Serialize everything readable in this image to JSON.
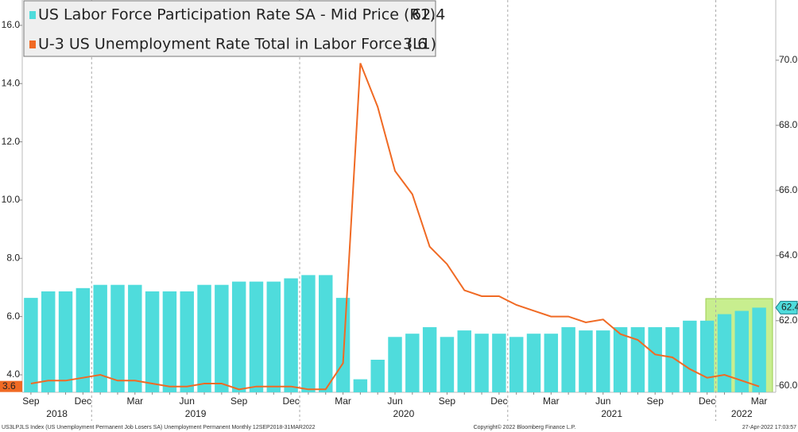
{
  "chart_data": {
    "type": "bar",
    "categories": [
      "Sep",
      null,
      null,
      "Dec",
      null,
      null,
      "Mar",
      null,
      null,
      "Jun",
      null,
      null,
      "Sep",
      null,
      null,
      "Dec",
      null,
      null,
      "Mar",
      null,
      null,
      "Jun",
      null,
      null,
      "Sep",
      null,
      null,
      "Dec",
      null,
      null,
      "Mar",
      null,
      null,
      "Jun",
      null,
      null,
      "Sep",
      null,
      null,
      "Dec",
      null,
      null,
      "Mar"
    ],
    "years": [
      "2018",
      "2019",
      "2020",
      "2021",
      "2022"
    ],
    "series": [
      {
        "name": "US Labor Force Participation Rate SA - Mid Price (R1)",
        "last_label": "62.4",
        "color": "#4fdcdc",
        "axis": "y2",
        "type": "bar",
        "values": [
          62.7,
          62.9,
          62.9,
          63.0,
          63.1,
          63.1,
          63.1,
          62.9,
          62.9,
          62.9,
          63.1,
          63.1,
          63.2,
          63.2,
          63.2,
          63.3,
          63.4,
          63.4,
          62.7,
          60.2,
          60.8,
          61.5,
          61.6,
          61.8,
          61.5,
          61.7,
          61.6,
          61.6,
          61.5,
          61.6,
          61.6,
          61.8,
          61.7,
          61.7,
          61.8,
          61.8,
          61.8,
          61.8,
          62.0,
          62.0,
          62.2,
          62.3,
          62.4
        ]
      },
      {
        "name": "U-3 US Unemployment Rate Total in Labor Force (L1)",
        "last_label": "3.6",
        "color": "#f06a24",
        "type": "line",
        "values": [
          3.7,
          3.8,
          3.8,
          3.9,
          4.0,
          3.8,
          3.8,
          3.7,
          3.6,
          3.6,
          3.7,
          3.7,
          3.5,
          3.6,
          3.6,
          3.6,
          3.5,
          3.5,
          4.4,
          14.7,
          13.2,
          11.0,
          10.2,
          8.4,
          7.8,
          6.9,
          6.7,
          6.7,
          6.4,
          6.2,
          6.0,
          6.0,
          5.8,
          5.9,
          5.4,
          5.2,
          4.7,
          4.6,
          4.2,
          3.9,
          4.0,
          3.8,
          3.6
        ]
      }
    ],
    "ylim": [
      3.4,
      16.87
    ],
    "yticks": [
      {
        "value": 4,
        "label": "4.0"
      },
      {
        "value": 6,
        "label": "6.0"
      },
      {
        "value": 8,
        "label": "8.0"
      },
      {
        "value": 10,
        "label": "10.0"
      },
      {
        "value": 12,
        "label": "12.0"
      },
      {
        "value": 14,
        "label": "14.0"
      },
      {
        "value": 16,
        "label": "16.0"
      }
    ],
    "y2lim": [
      59.8,
      71.85
    ],
    "y2ticks": [
      {
        "value": 60,
        "label": "60.0"
      },
      {
        "value": 62,
        "label": "62.0"
      },
      {
        "value": 64,
        "label": "64.0"
      },
      {
        "value": 66,
        "label": "66.0"
      },
      {
        "value": 68,
        "label": "68.0"
      },
      {
        "value": 70,
        "label": "70.0"
      }
    ],
    "footer": {
      "left": "US3LPJLS Index (US Unemployment Permanent Job Losers SA) Unemployment Permanent Monthly 12SEP2018-31MAR2022",
      "center": "Copyright© 2022 Bloomberg Finance L.P.",
      "right": "27-Apr-2022 17:03:57"
    }
  }
}
